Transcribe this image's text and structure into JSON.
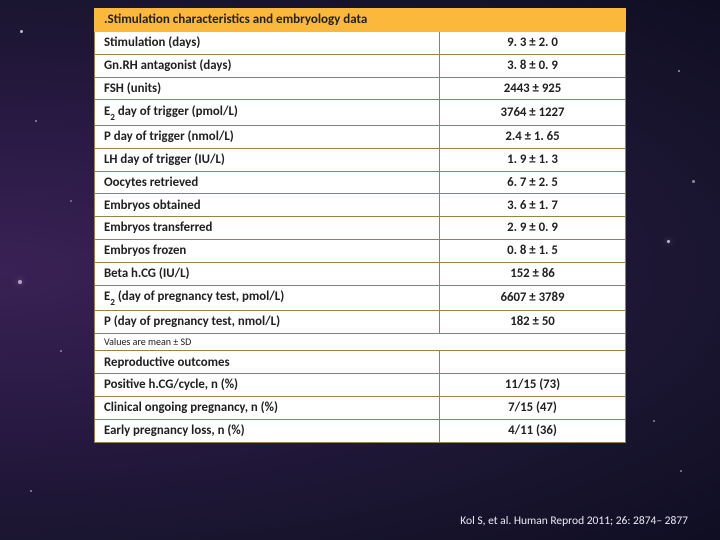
{
  "table": {
    "header1": ".Stimulation characteristics and embryology data",
    "rows1": [
      {
        "label": "Stimulation (days)",
        "value": "9. 3 ± 2. 0"
      },
      {
        "label": "Gn.RH antagonist (days)",
        "value": "3. 8 ± 0. 9"
      },
      {
        "label": "FSH  (units)",
        "value": "2443 ± 925"
      },
      {
        "label": "E<sub>2</sub> day of trigger (pmol/L)",
        "value": "3764 ± 1227"
      },
      {
        "label": "P day of trigger (nmol/L)",
        "value": "2.4 ± 1. 65"
      },
      {
        "label": "LH day of trigger (IU/L)",
        "value": "1. 9 ± 1. 3"
      },
      {
        "label": "Oocytes retrieved",
        "value": "6. 7 ± 2. 5"
      },
      {
        "label": "Embryos obtained",
        "value": "3. 6 ± 1. 7"
      },
      {
        "label": "Embryos transferred",
        "value": "2. 9 ± 0. 9"
      },
      {
        "label": "Embryos frozen",
        "value": "0. 8 ± 1. 5"
      },
      {
        "label": "Beta h.CG (IU/L)",
        "value": "152 ± 86"
      },
      {
        "label": "E<sub>2</sub> (day of pregnancy test, pmol/L)",
        "value": "6607 ± 3789"
      },
      {
        "label": "P (day of pregnancy test, nmol/L)",
        "value": "182 ± 50"
      }
    ],
    "subnote": "Values are mean ± SD",
    "header2": "Reproductive outcomes",
    "rows2": [
      {
        "label": "Positive h.CG/cycle, n (%)",
        "value": "11/15 (73)"
      },
      {
        "label": "Clinical ongoing pregnancy, n (%)",
        "value": "7/15 (47)"
      },
      {
        "label": "Early pregnancy loss, n (%)",
        "value": "4/11 (36)"
      }
    ]
  },
  "citation": "Kol S, et al. Human Reprod 2011; 26: 2874– 2877"
}
